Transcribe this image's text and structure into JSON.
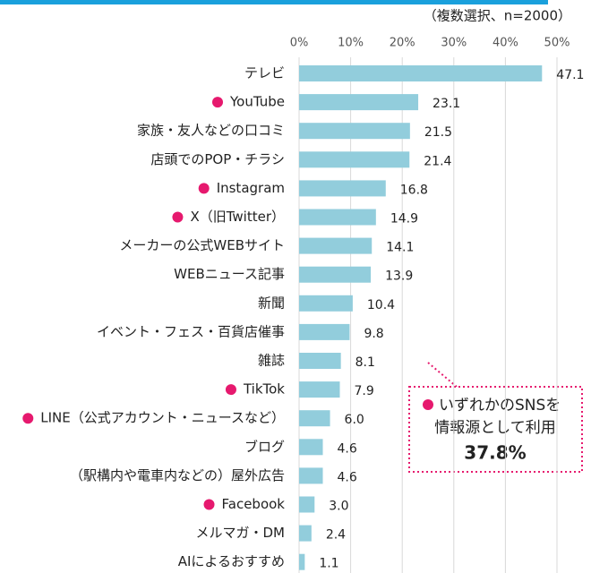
{
  "chart_data": {
    "type": "bar",
    "orientation": "horizontal",
    "subtitle": "（複数選択、n=2000）",
    "categories": [
      "テレビ",
      "YouTube",
      "家族・友人などの口コミ",
      "店頭でのPOP・チラシ",
      "Instagram",
      "X（旧Twitter）",
      "メーカーの公式WEBサイト",
      "WEBニュース記事",
      "新聞",
      "イベント・フェス・百貨店催事",
      "雑誌",
      "TikTok",
      "LINE（公式アカウント・ニュースなど）",
      "ブログ",
      "（駅構内や電車内などの）屋外広告",
      "Facebook",
      "メルマガ・DM",
      "AIによるおすすめ"
    ],
    "values": [
      47.1,
      23.1,
      21.5,
      21.4,
      16.8,
      14.9,
      14.1,
      13.9,
      10.4,
      9.8,
      8.1,
      7.9,
      6.0,
      4.6,
      4.6,
      3.0,
      2.4,
      1.1
    ],
    "value_labels": [
      "47.1",
      "23.1",
      "21.5",
      "21.4",
      "16.8",
      "14.9",
      "14.1",
      "13.9",
      "10.4",
      "9.8",
      "8.1",
      "7.9",
      "6.0",
      "4.6",
      "4.6",
      "3.0",
      "2.4",
      "1.1"
    ],
    "highlighted": [
      false,
      true,
      false,
      false,
      true,
      true,
      false,
      false,
      false,
      false,
      false,
      true,
      true,
      false,
      false,
      true,
      false,
      false
    ],
    "color": "#92cddc",
    "highlight_color": "#e6196e",
    "xlim": [
      0,
      50
    ],
    "xticks": [
      {
        "value": 0,
        "label": "0%"
      },
      {
        "value": 10,
        "label": "10%"
      },
      {
        "value": 20,
        "label": "20%"
      },
      {
        "value": 30,
        "label": "30%"
      },
      {
        "value": 40,
        "label": "40%"
      },
      {
        "value": 50,
        "label": "50%"
      }
    ],
    "grid": true,
    "annotation": {
      "lines": [
        "いずれかのSNSを",
        "情報源として利用"
      ],
      "value_label": "37.8%"
    }
  }
}
